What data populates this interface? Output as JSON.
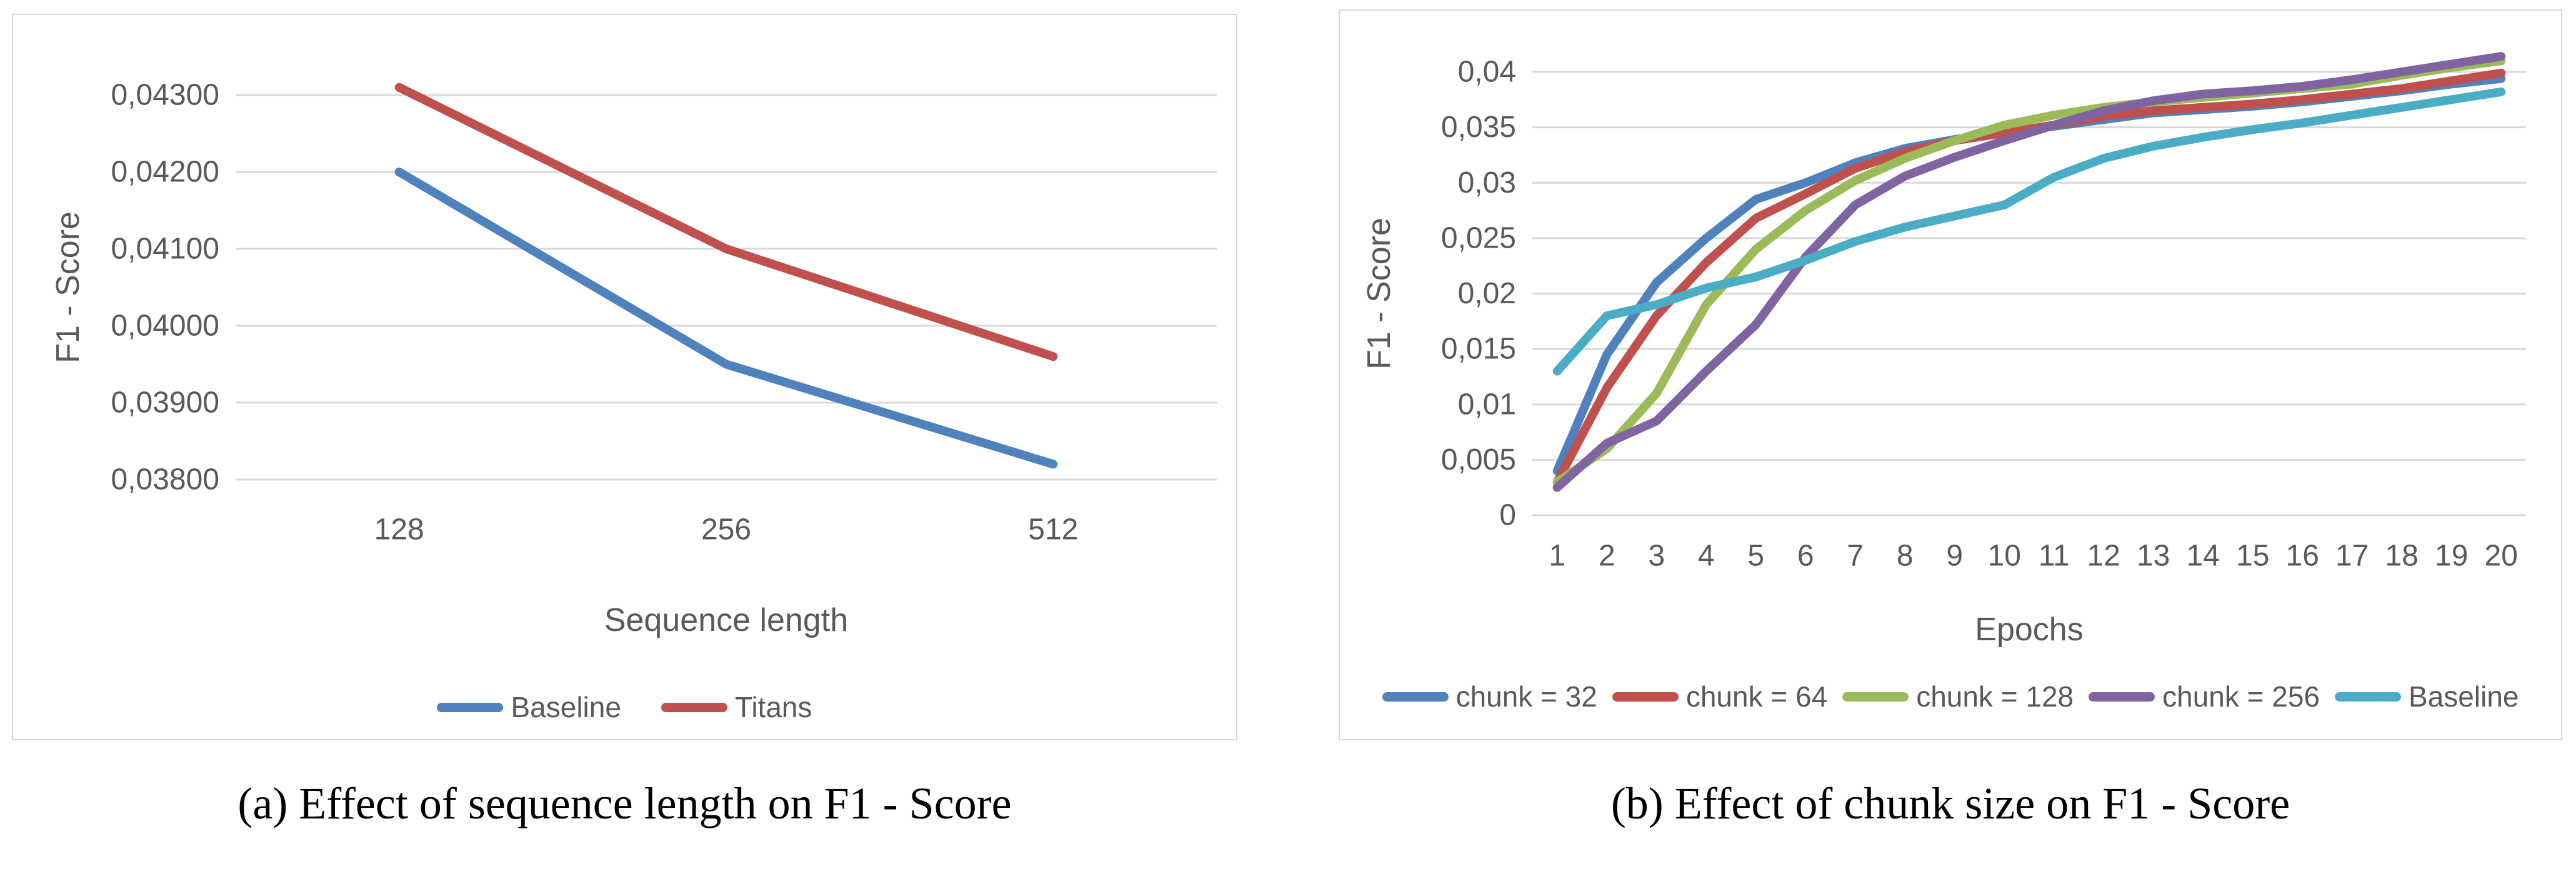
{
  "page": {
    "background": "#ffffff",
    "text_color": "#595959",
    "grid_color": "#d9d9d9",
    "panel_border_color": "#d8d8d8",
    "caption_color": "#000000"
  },
  "figures": [
    {
      "caption": "(a) Effect of sequence length on F1 - Score"
    },
    {
      "caption": "(b) Effect of chunk size on F1 - Score"
    }
  ],
  "chart_data": [
    {
      "type": "line",
      "title": "",
      "xlabel": "Sequence length",
      "ylabel": "F1 - Score",
      "grid": true,
      "legend_position": "bottom",
      "categories": [
        "128",
        "256",
        "512"
      ],
      "ylim": [
        0.038,
        0.043
      ],
      "y_ticks": [
        {
          "label": "0,04300",
          "value": 0.043
        },
        {
          "label": "0,04200",
          "value": 0.042
        },
        {
          "label": "0,04100",
          "value": 0.041
        },
        {
          "label": "0,04000",
          "value": 0.04
        },
        {
          "label": "0,03900",
          "value": 0.039
        },
        {
          "label": "0,03800",
          "value": 0.038
        }
      ],
      "series": [
        {
          "name": "Baseline",
          "color": "#4F81BD",
          "values": [
            0.042,
            0.0395,
            0.0382
          ]
        },
        {
          "name": "Titans",
          "color": "#C0504D",
          "values": [
            0.0431,
            0.041,
            0.0396
          ]
        }
      ]
    },
    {
      "type": "line",
      "title": "",
      "xlabel": "Epochs",
      "ylabel": "F1 - Score",
      "grid": true,
      "legend_position": "bottom",
      "categories": [
        "1",
        "2",
        "3",
        "4",
        "5",
        "6",
        "7",
        "8",
        "9",
        "10",
        "11",
        "12",
        "13",
        "14",
        "15",
        "16",
        "17",
        "18",
        "19",
        "20"
      ],
      "ylim": [
        0,
        0.043
      ],
      "y_ticks": [
        {
          "label": "0,04",
          "value": 0.04
        },
        {
          "label": "0,035",
          "value": 0.035
        },
        {
          "label": "0,03",
          "value": 0.03
        },
        {
          "label": "0,025",
          "value": 0.025
        },
        {
          "label": "0,02",
          "value": 0.02
        },
        {
          "label": "0,015",
          "value": 0.015
        },
        {
          "label": "0,01",
          "value": 0.01
        },
        {
          "label": "0,005",
          "value": 0.005
        },
        {
          "label": "0",
          "value": 0
        }
      ],
      "series": [
        {
          "name": "chunk = 32",
          "color": "#4F81BD",
          "values": [
            0.004,
            0.0145,
            0.021,
            0.025,
            0.0285,
            0.03,
            0.0318,
            0.0331,
            0.0339,
            0.0345,
            0.0351,
            0.0357,
            0.0363,
            0.0366,
            0.0369,
            0.0373,
            0.0378,
            0.0383,
            0.0389,
            0.0394
          ]
        },
        {
          "name": "chunk = 64",
          "color": "#C0504D",
          "values": [
            0.003,
            0.0115,
            0.018,
            0.0228,
            0.0268,
            0.029,
            0.0313,
            0.0328,
            0.0338,
            0.0345,
            0.0352,
            0.036,
            0.0365,
            0.0368,
            0.0371,
            0.0375,
            0.038,
            0.0385,
            0.0392,
            0.0399
          ]
        },
        {
          "name": "chunk = 128",
          "color": "#9BBB59",
          "values": [
            0.003,
            0.006,
            0.011,
            0.019,
            0.024,
            0.0275,
            0.0302,
            0.0322,
            0.0338,
            0.0352,
            0.0361,
            0.0368,
            0.0373,
            0.0377,
            0.0381,
            0.0385,
            0.0389,
            0.0397,
            0.0404,
            0.041
          ]
        },
        {
          "name": "chunk = 256",
          "color": "#8064A2",
          "values": [
            0.0025,
            0.0065,
            0.0085,
            0.013,
            0.0172,
            0.0233,
            0.028,
            0.0306,
            0.0323,
            0.0338,
            0.0352,
            0.0365,
            0.0374,
            0.038,
            0.0383,
            0.0387,
            0.0393,
            0.04,
            0.0407,
            0.0414
          ]
        },
        {
          "name": "Baseline",
          "color": "#4BACC6",
          "values": [
            0.013,
            0.018,
            0.019,
            0.0205,
            0.0215,
            0.023,
            0.0247,
            0.026,
            0.027,
            0.028,
            0.0305,
            0.0322,
            0.0333,
            0.0341,
            0.0348,
            0.0354,
            0.0361,
            0.0368,
            0.0375,
            0.0382
          ]
        }
      ]
    }
  ]
}
